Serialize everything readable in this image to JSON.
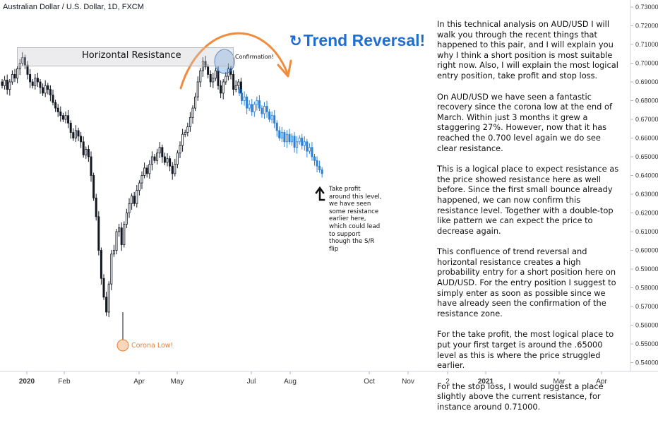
{
  "symbol_title": "Australian Dollar / U.S. Dollar, 1D, FXCM",
  "annotations": {
    "horizontal_resistance": "Horizontal Resistance",
    "confirmation": "Confirmation!",
    "trend_reversal": "Trend Reversal!",
    "take_profit": "Take profit around this level, we have seen some resistance earlier here, which could lead to support though the S/R flip",
    "corona_low": "Corona Low!"
  },
  "analysis": {
    "p1": "In this technical analysis on AUD/USD I will walk you through the recent things that happened to this pair, and I will explain you why I think a short position is most suitable right now. Also, I will explain the most logical entry position, take profit and stop loss.",
    "p2": "On AUD/USD we have seen a fantastic recovery since the corona low at the end of March. Within just 3 months it grew a staggering 27%. However, now that it has reached the 0.700 level again we do see clear resistance.",
    "p3": "This is a logical place to expect resistance as the price showed resistance here as well before. Since the first small bounce already happened, we can now confirm this resistance level. Together with a double-top like pattern we can expect the price to decrease again.",
    "p4": "This confluence of trend reversal and horizontal resistance creates a high probability entry for a short position here on AUD/USD. For the entry position I suggest to simply enter as soon as possible since we have already seen the confirmation of the resistance zone.",
    "p5": "For the take profit, the most logical place to put your first target is around the .65000 level as this is where the price struggled earlier.",
    "p6": "For the stop loss, I would suggest a place slightly above the current resistance, for instance around 0.71000."
  },
  "colors": {
    "candles": "#131722",
    "projection": "#2a7fd6",
    "accent_orange": "#f08c3c",
    "trend_text": "#1e6fd1"
  },
  "chart_data": {
    "type": "line",
    "xlabel": "",
    "ylabel": "",
    "ylim": [
      0.535,
      0.735
    ],
    "x_tick_labels": [
      "2020",
      "Feb",
      "Apr",
      "May",
      "Jul",
      "Aug",
      "Oct",
      "Nov",
      "2",
      "2021",
      "Mar",
      "Apr"
    ],
    "y_tick_labels": [
      "0.73000",
      "0.72000",
      "0.71000",
      "0.70000",
      "0.69000",
      "0.68000",
      "0.67000",
      "0.66000",
      "0.65000",
      "0.64000",
      "0.63000",
      "0.62000",
      "0.61000",
      "0.60000",
      "0.59000",
      "0.58000",
      "0.57000",
      "0.56000",
      "0.55000",
      "0.54000"
    ],
    "grid": false,
    "series": [
      {
        "values": [
          0.688,
          0.691,
          0.686,
          0.69,
          0.694,
          0.692,
          0.697,
          0.7,
          0.703,
          0.699,
          0.694,
          0.69,
          0.688,
          0.692,
          0.69,
          0.687,
          0.684,
          0.688,
          0.686,
          0.683,
          0.679,
          0.676,
          0.674,
          0.672,
          0.67,
          0.672,
          0.668,
          0.663,
          0.66,
          0.664,
          0.661,
          0.658,
          0.651,
          0.654,
          0.65,
          0.64,
          0.628,
          0.618,
          0.6,
          0.585,
          0.575,
          0.567,
          0.582,
          0.598,
          0.6,
          0.61,
          0.612,
          0.603,
          0.614,
          0.62,
          0.625,
          0.629,
          0.625,
          0.632,
          0.636,
          0.64,
          0.644,
          0.641,
          0.646,
          0.65,
          0.648,
          0.652,
          0.655,
          0.65,
          0.647,
          0.649,
          0.645,
          0.641,
          0.646,
          0.652,
          0.656,
          0.662,
          0.663,
          0.666,
          0.671,
          0.676,
          0.682,
          0.69,
          0.696,
          0.701,
          0.698,
          0.694,
          0.69,
          0.692,
          0.696,
          0.688,
          0.684,
          0.69,
          0.693,
          0.697,
          0.694,
          0.686,
          0.688,
          0.69,
          0.684
        ]
      },
      {
        "values": [
          0.684,
          0.68,
          0.682,
          0.676,
          0.678,
          0.674,
          0.678,
          0.68,
          0.676,
          0.673,
          0.677,
          0.674,
          0.67,
          0.672,
          0.668,
          0.664,
          0.66,
          0.663,
          0.658,
          0.662,
          0.658,
          0.661,
          0.655,
          0.658,
          0.66,
          0.656,
          0.658,
          0.653,
          0.655,
          0.65,
          0.648,
          0.645,
          0.643,
          0.641
        ]
      }
    ]
  }
}
